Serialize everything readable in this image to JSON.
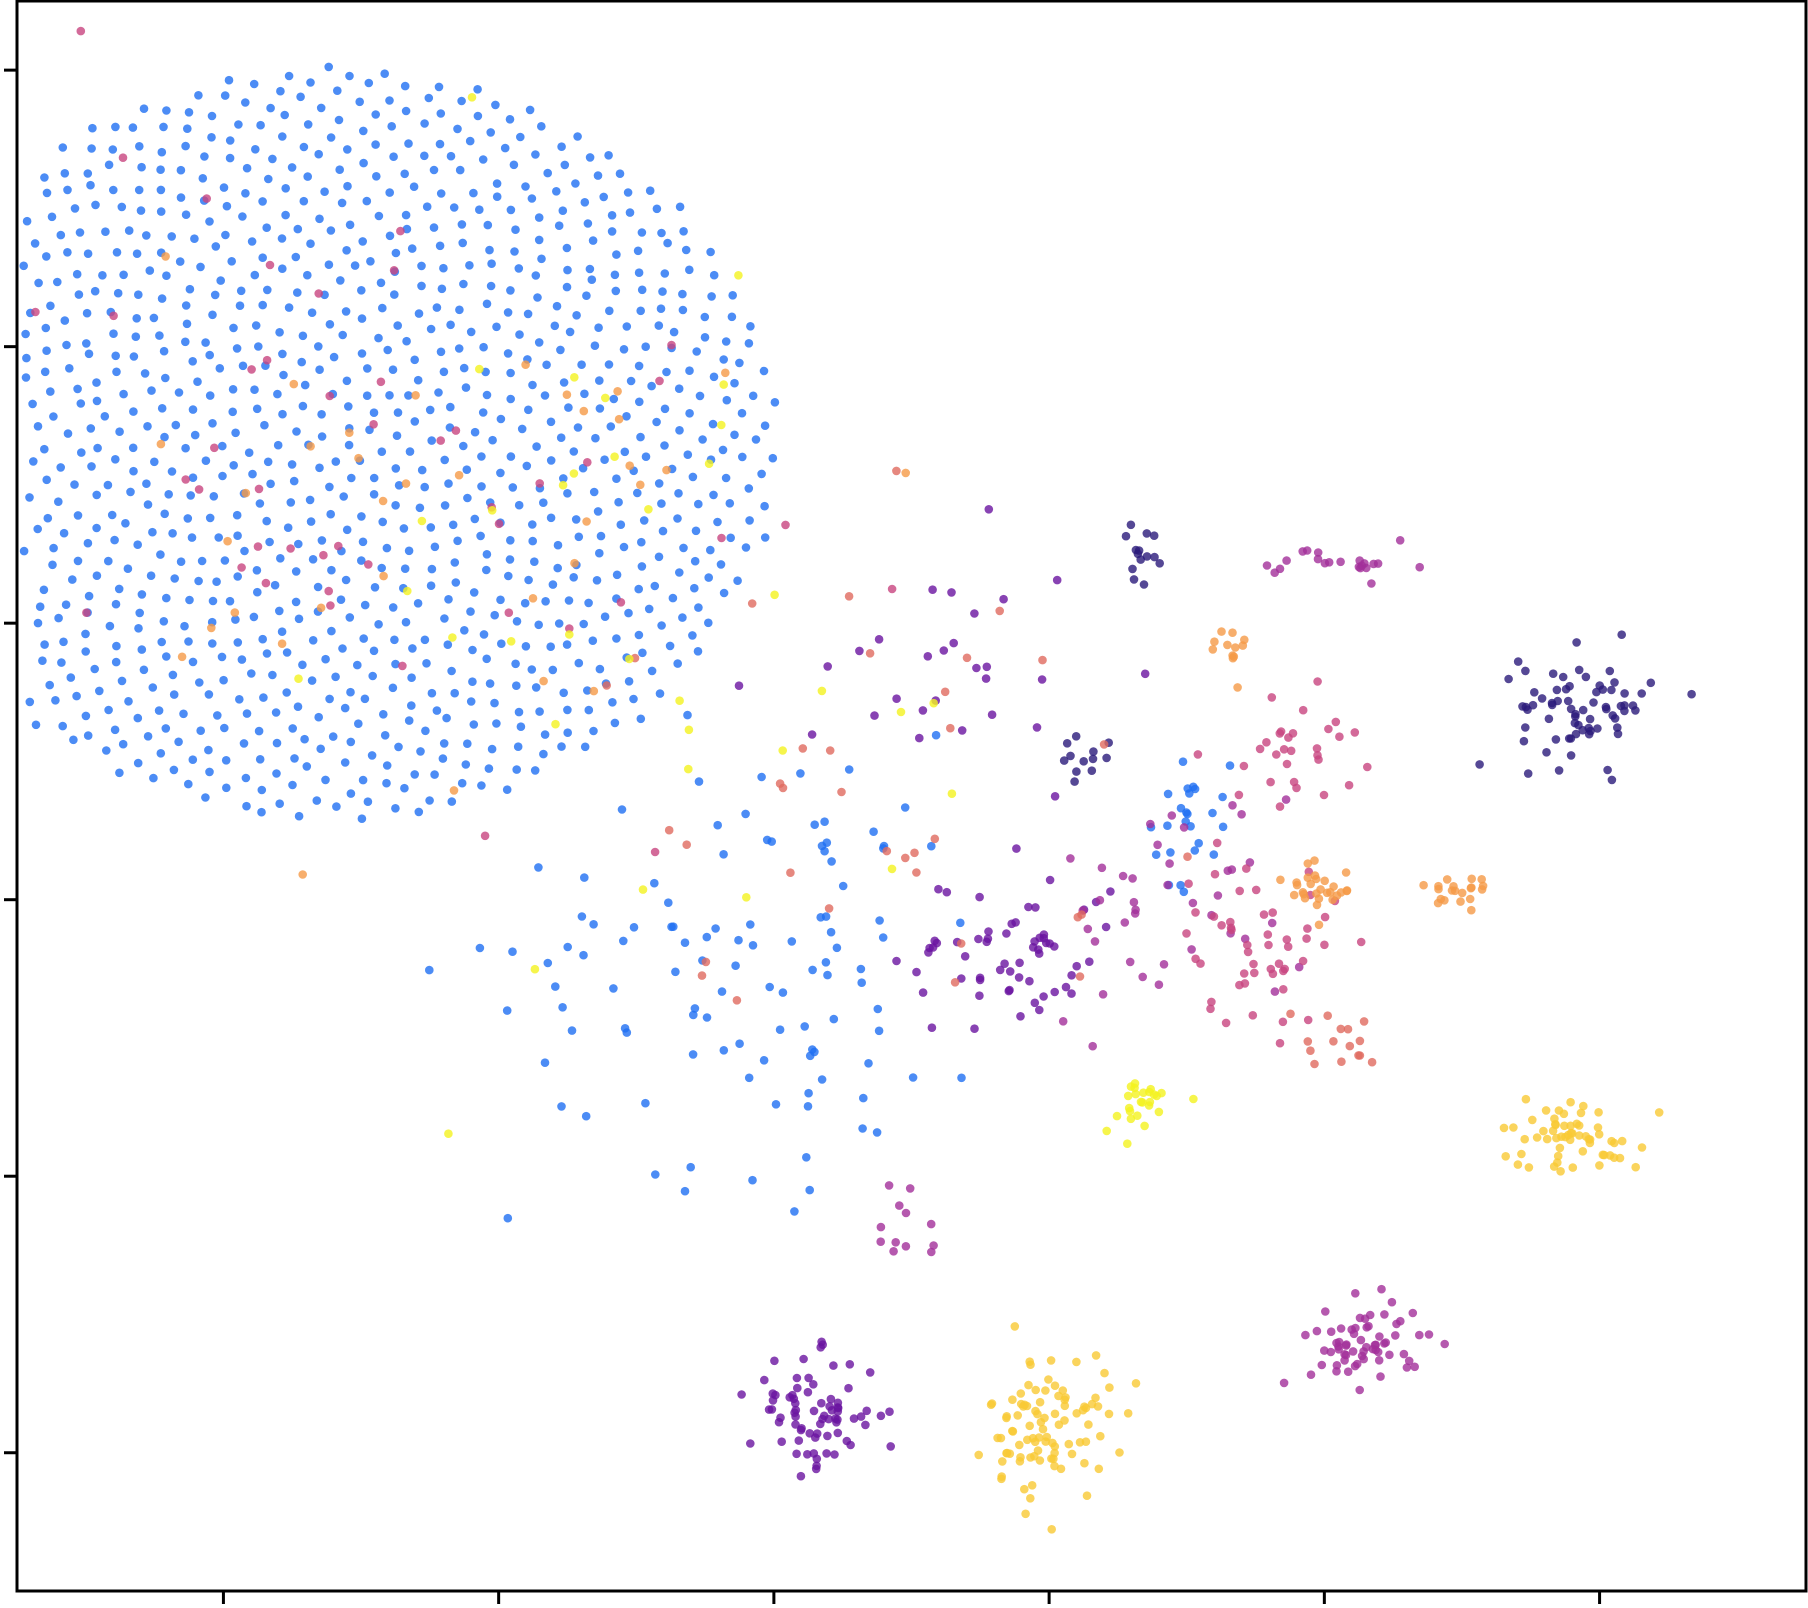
{
  "chart_data": {
    "type": "scatter",
    "title": "",
    "xlabel": "",
    "ylabel": "",
    "xlim": [
      -1.75,
      4.75
    ],
    "ylim": [
      -4.5,
      1.25
    ],
    "grid": false,
    "legend": "none",
    "x_ticks": [
      -1,
      0,
      1,
      2,
      3,
      4
    ],
    "y_ticks": [
      -4,
      -3,
      -2,
      -1,
      0,
      1
    ],
    "x_tick_labels": [],
    "y_tick_labels": [],
    "colors": {
      "blue": "#1f6ff2",
      "navy": "#2a1a7a",
      "purple": "#6a14a0",
      "magenta": "#a2309a",
      "pink": "#c8457f",
      "salmon": "#e06a5f",
      "orange": "#f59a47",
      "gold": "#f9c935",
      "yellow": "#f4f31f"
    },
    "series": [
      {
        "color_key": "blue",
        "clusters": [
          {
            "cx": -0.6,
            "cy": -0.35,
            "sx": 0.85,
            "sy": 0.72,
            "n": 1100,
            "sunflower": true
          },
          {
            "cx": 0.95,
            "cy": -2.2,
            "sx": 0.45,
            "sy": 0.4,
            "n": 110
          },
          {
            "cx": 2.5,
            "cy": -1.7,
            "sx": 0.08,
            "sy": 0.12,
            "n": 25
          }
        ]
      },
      {
        "color_key": "navy",
        "clusters": [
          {
            "cx": 3.95,
            "cy": -1.3,
            "sx": 0.12,
            "sy": 0.1,
            "n": 70
          },
          {
            "cx": 2.35,
            "cy": -0.75,
            "sx": 0.05,
            "sy": 0.05,
            "n": 14
          },
          {
            "cx": 2.1,
            "cy": -1.5,
            "sx": 0.06,
            "sy": 0.05,
            "n": 12
          }
        ]
      },
      {
        "color_key": "purple",
        "clusters": [
          {
            "cx": 1.15,
            "cy": -3.85,
            "sx": 0.12,
            "sy": 0.1,
            "n": 75
          },
          {
            "cx": 1.85,
            "cy": -2.2,
            "sx": 0.2,
            "sy": 0.15,
            "n": 60
          },
          {
            "cx": 1.6,
            "cy": -1.25,
            "sx": 0.3,
            "sy": 0.25,
            "n": 30
          }
        ]
      },
      {
        "color_key": "magenta",
        "clusters": [
          {
            "cx": 3.15,
            "cy": -3.6,
            "sx": 0.1,
            "sy": 0.08,
            "n": 65
          },
          {
            "cx": 3.05,
            "cy": -0.8,
            "sx": 0.15,
            "sy": 0.04,
            "n": 22
          },
          {
            "cx": 2.45,
            "cy": -2.0,
            "sx": 0.25,
            "sy": 0.2,
            "n": 40
          },
          {
            "cx": 1.5,
            "cy": -3.2,
            "sx": 0.06,
            "sy": 0.12,
            "n": 12
          }
        ]
      },
      {
        "color_key": "pink",
        "clusters": [
          {
            "cx": 2.75,
            "cy": -2.15,
            "sx": 0.15,
            "sy": 0.15,
            "n": 50
          },
          {
            "cx": 2.9,
            "cy": -1.45,
            "sx": 0.12,
            "sy": 0.1,
            "n": 30
          },
          {
            "cx": -0.6,
            "cy": -0.35,
            "sx": 0.8,
            "sy": 0.6,
            "n": 50
          }
        ]
      },
      {
        "color_key": "salmon",
        "clusters": [
          {
            "cx": 3.0,
            "cy": -2.5,
            "sx": 0.1,
            "sy": 0.06,
            "n": 15
          },
          {
            "cx": 1.4,
            "cy": -1.6,
            "sx": 0.5,
            "sy": 0.4,
            "n": 35
          }
        ]
      },
      {
        "color_key": "orange",
        "clusters": [
          {
            "cx": 2.97,
            "cy": -1.95,
            "sx": 0.07,
            "sy": 0.06,
            "n": 28
          },
          {
            "cx": 3.5,
            "cy": -1.98,
            "sx": 0.07,
            "sy": 0.05,
            "n": 20
          },
          {
            "cx": 2.62,
            "cy": -1.1,
            "sx": 0.05,
            "sy": 0.05,
            "n": 12
          },
          {
            "cx": 0.0,
            "cy": -0.6,
            "sx": 0.6,
            "sy": 0.5,
            "n": 35
          }
        ]
      },
      {
        "color_key": "gold",
        "clusters": [
          {
            "cx": 2.0,
            "cy": -3.9,
            "sx": 0.11,
            "sy": 0.13,
            "n": 95
          },
          {
            "cx": 3.9,
            "cy": -2.85,
            "sx": 0.13,
            "sy": 0.07,
            "n": 60
          }
        ]
      },
      {
        "color_key": "yellow",
        "clusters": [
          {
            "cx": 2.33,
            "cy": -2.75,
            "sx": 0.07,
            "sy": 0.05,
            "n": 25
          },
          {
            "cx": 0.3,
            "cy": -1.0,
            "sx": 0.9,
            "sy": 0.8,
            "n": 35
          }
        ]
      }
    ]
  }
}
